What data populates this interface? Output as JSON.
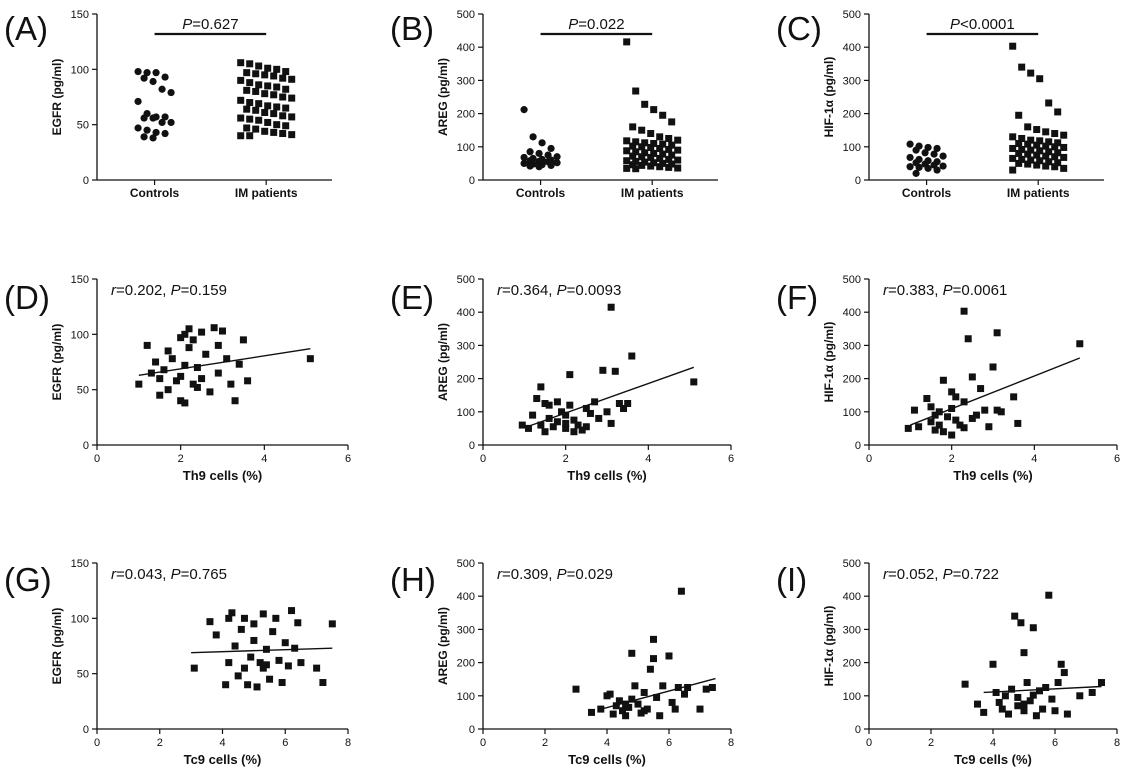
{
  "chart_data": [
    {
      "panel": "(A)",
      "type": "scatter",
      "ylabel": "EGFR (pg/ml)",
      "ylim": [
        0,
        150
      ],
      "yticks": [
        0,
        50,
        100,
        150
      ],
      "categories": [
        "Controls",
        "IM patients"
      ],
      "series": [
        {
          "marker": "circle",
          "values": [
            98,
            97,
            97,
            93,
            92,
            89,
            82,
            79,
            71,
            60,
            57,
            57,
            56,
            56,
            52,
            52,
            47,
            45,
            43,
            42,
            39,
            38
          ]
        },
        {
          "marker": "square",
          "values": [
            106,
            105,
            103,
            101,
            100,
            98,
            97,
            96,
            95,
            94,
            92,
            91,
            90,
            88,
            86,
            85,
            84,
            82,
            81,
            80,
            78,
            77,
            75,
            74,
            72,
            70,
            69,
            67,
            66,
            65,
            64,
            63,
            61,
            60,
            58,
            57,
            56,
            55,
            54,
            52,
            50,
            49,
            47,
            46,
            44,
            43,
            42,
            41,
            40,
            40
          ]
        }
      ],
      "bracket": {
        "prefix": "P",
        "text": "=0.627"
      }
    },
    {
      "panel": "(B)",
      "type": "scatter",
      "ylabel": "AREG (pg/ml)",
      "ylim": [
        0,
        500
      ],
      "yticks": [
        0,
        100,
        200,
        300,
        400,
        500
      ],
      "categories": [
        "Controls",
        "IM patients"
      ],
      "series": [
        {
          "marker": "circle",
          "values": [
            212,
            130,
            112,
            95,
            85,
            80,
            75,
            70,
            68,
            65,
            62,
            60,
            58,
            56,
            55,
            52,
            50,
            48,
            46,
            44,
            42,
            40
          ]
        },
        {
          "marker": "square",
          "values": [
            416,
            268,
            228,
            212,
            195,
            175,
            160,
            150,
            140,
            130,
            125,
            120,
            118,
            115,
            112,
            110,
            108,
            105,
            102,
            100,
            98,
            95,
            92,
            90,
            88,
            85,
            82,
            80,
            78,
            75,
            72,
            70,
            68,
            65,
            62,
            60,
            58,
            56,
            54,
            52,
            50,
            48,
            46,
            44,
            42,
            40,
            38,
            36,
            35,
            34
          ]
        }
      ],
      "bracket": {
        "prefix": "P",
        "text": "=0.022"
      }
    },
    {
      "panel": "(C)",
      "type": "scatter",
      "ylabel": "HIF-1α (pg/ml)",
      "ylim": [
        0,
        500
      ],
      "yticks": [
        0,
        100,
        200,
        300,
        400,
        500
      ],
      "categories": [
        "Controls",
        "IM patients"
      ],
      "series": [
        {
          "marker": "circle",
          "values": [
            108,
            102,
            98,
            95,
            90,
            82,
            78,
            72,
            68,
            62,
            58,
            55,
            52,
            48,
            45,
            42,
            40,
            38,
            35,
            30,
            20
          ]
        },
        {
          "marker": "square",
          "values": [
            403,
            340,
            322,
            305,
            232,
            205,
            195,
            160,
            152,
            145,
            140,
            135,
            130,
            125,
            120,
            118,
            115,
            112,
            110,
            108,
            105,
            102,
            100,
            98,
            95,
            92,
            90,
            88,
            85,
            82,
            80,
            78,
            75,
            72,
            70,
            68,
            65,
            62,
            60,
            58,
            55,
            52,
            50,
            48,
            45,
            42,
            40,
            35,
            30
          ]
        }
      ],
      "bracket": {
        "prefix": "P",
        "text": "<0.0001"
      }
    },
    {
      "panel": "(D)",
      "type": "scatter",
      "xlabel": "Th9 cells (%)",
      "ylabel": "EGFR (pg/ml)",
      "xlim": [
        0,
        6
      ],
      "xticks": [
        0,
        2,
        4,
        6
      ],
      "ylim": [
        0,
        150
      ],
      "yticks": [
        0,
        50,
        100,
        150
      ],
      "points": [
        [
          1.0,
          55
        ],
        [
          1.2,
          90
        ],
        [
          1.3,
          65
        ],
        [
          1.4,
          75
        ],
        [
          1.5,
          60
        ],
        [
          1.5,
          45
        ],
        [
          1.6,
          68
        ],
        [
          1.7,
          50
        ],
        [
          1.8,
          78
        ],
        [
          1.9,
          58
        ],
        [
          2.0,
          97
        ],
        [
          2.0,
          62
        ],
        [
          2.0,
          40
        ],
        [
          2.1,
          100
        ],
        [
          2.1,
          72
        ],
        [
          2.1,
          38
        ],
        [
          2.2,
          105
        ],
        [
          2.2,
          88
        ],
        [
          2.3,
          55
        ],
        [
          2.3,
          95
        ],
        [
          2.4,
          70
        ],
        [
          2.5,
          102
        ],
        [
          2.5,
          60
        ],
        [
          2.6,
          82
        ],
        [
          2.7,
          48
        ],
        [
          2.8,
          106
        ],
        [
          2.9,
          65
        ],
        [
          2.9,
          90
        ],
        [
          3.0,
          103
        ],
        [
          3.1,
          78
        ],
        [
          3.2,
          55
        ],
        [
          3.3,
          40
        ],
        [
          3.4,
          73
        ],
        [
          3.5,
          95
        ],
        [
          3.6,
          58
        ],
        [
          5.1,
          78
        ],
        [
          1.7,
          85
        ],
        [
          2.4,
          52
        ]
      ],
      "fit": [
        [
          1.0,
          63
        ],
        [
          5.1,
          87
        ]
      ],
      "annotation": {
        "r_text": "=0.202, ",
        "p_text": "=0.159"
      }
    },
    {
      "panel": "(E)",
      "type": "scatter",
      "xlabel": "Th9 cells (%)",
      "ylabel": "AREG (pg/ml)",
      "xlim": [
        0,
        6
      ],
      "xticks": [
        0,
        2,
        4,
        6
      ],
      "ylim": [
        0,
        500
      ],
      "yticks": [
        0,
        100,
        200,
        300,
        400,
        500
      ],
      "points": [
        [
          0.95,
          60
        ],
        [
          1.1,
          50
        ],
        [
          1.2,
          90
        ],
        [
          1.3,
          140
        ],
        [
          1.4,
          175
        ],
        [
          1.4,
          60
        ],
        [
          1.5,
          40
        ],
        [
          1.6,
          120
        ],
        [
          1.6,
          80
        ],
        [
          1.7,
          55
        ],
        [
          1.8,
          130
        ],
        [
          1.8,
          70
        ],
        [
          1.9,
          100
        ],
        [
          2.0,
          50
        ],
        [
          2.0,
          90
        ],
        [
          2.1,
          212
        ],
        [
          2.1,
          120
        ],
        [
          2.2,
          40
        ],
        [
          2.2,
          75
        ],
        [
          2.3,
          60
        ],
        [
          2.4,
          45
        ],
        [
          2.5,
          110
        ],
        [
          2.6,
          95
        ],
        [
          2.7,
          130
        ],
        [
          2.8,
          80
        ],
        [
          2.9,
          225
        ],
        [
          3.0,
          100
        ],
        [
          3.1,
          415
        ],
        [
          3.1,
          65
        ],
        [
          3.2,
          222
        ],
        [
          3.3,
          125
        ],
        [
          3.4,
          110
        ],
        [
          3.5,
          125
        ],
        [
          3.6,
          268
        ],
        [
          5.1,
          190
        ],
        [
          1.5,
          125
        ],
        [
          2.0,
          65
        ],
        [
          2.5,
          55
        ]
      ],
      "fit": [
        [
          1.0,
          52
        ],
        [
          5.1,
          234
        ]
      ],
      "annotation": {
        "r_text": "=0.364, ",
        "p_text": "=0.0093"
      }
    },
    {
      "panel": "(F)",
      "type": "scatter",
      "xlabel": "Th9 cells (%)",
      "ylabel": "HIF-1α (pg/ml)",
      "xlim": [
        0,
        6
      ],
      "xticks": [
        0,
        2,
        4,
        6
      ],
      "ylim": [
        0,
        500
      ],
      "yticks": [
        0,
        100,
        200,
        300,
        400,
        500
      ],
      "points": [
        [
          0.95,
          50
        ],
        [
          1.1,
          105
        ],
        [
          1.2,
          55
        ],
        [
          1.4,
          140
        ],
        [
          1.5,
          115
        ],
        [
          1.5,
          70
        ],
        [
          1.6,
          90
        ],
        [
          1.7,
          60
        ],
        [
          1.7,
          100
        ],
        [
          1.8,
          40
        ],
        [
          1.8,
          195
        ],
        [
          1.9,
          85
        ],
        [
          2.0,
          110
        ],
        [
          2.0,
          30
        ],
        [
          2.1,
          145
        ],
        [
          2.1,
          75
        ],
        [
          2.2,
          60
        ],
        [
          2.3,
          403
        ],
        [
          2.3,
          130
        ],
        [
          2.3,
          52
        ],
        [
          2.4,
          320
        ],
        [
          2.5,
          205
        ],
        [
          2.6,
          90
        ],
        [
          2.7,
          170
        ],
        [
          2.8,
          105
        ],
        [
          2.9,
          55
        ],
        [
          3.0,
          235
        ],
        [
          3.1,
          338
        ],
        [
          3.1,
          105
        ],
        [
          3.2,
          100
        ],
        [
          3.5,
          145
        ],
        [
          3.6,
          65
        ],
        [
          5.1,
          305
        ],
        [
          1.6,
          45
        ],
        [
          2.0,
          160
        ],
        [
          2.5,
          80
        ]
      ],
      "fit": [
        [
          1.0,
          60
        ],
        [
          5.1,
          262
        ]
      ],
      "annotation": {
        "r_text": "=0.383, ",
        "p_text": "=0.0061"
      }
    },
    {
      "panel": "(G)",
      "type": "scatter",
      "xlabel": "Tc9 cells (%)",
      "ylabel": "EGFR (pg/ml)",
      "xlim": [
        0,
        8
      ],
      "xticks": [
        0,
        2,
        4,
        6,
        8
      ],
      "ylim": [
        0,
        150
      ],
      "yticks": [
        0,
        50,
        100,
        150
      ],
      "points": [
        [
          3.1,
          55
        ],
        [
          3.6,
          97
        ],
        [
          3.8,
          85
        ],
        [
          4.1,
          40
        ],
        [
          4.2,
          60
        ],
        [
          4.3,
          105
        ],
        [
          4.4,
          75
        ],
        [
          4.5,
          48
        ],
        [
          4.6,
          90
        ],
        [
          4.7,
          55
        ],
        [
          4.7,
          100
        ],
        [
          4.8,
          40
        ],
        [
          4.9,
          65
        ],
        [
          5.0,
          80
        ],
        [
          5.0,
          95
        ],
        [
          5.1,
          38
        ],
        [
          5.2,
          60
        ],
        [
          5.3,
          104
        ],
        [
          5.3,
          55
        ],
        [
          5.4,
          72
        ],
        [
          5.5,
          45
        ],
        [
          5.6,
          88
        ],
        [
          5.7,
          100
        ],
        [
          5.8,
          62
        ],
        [
          5.9,
          42
        ],
        [
          6.0,
          78
        ],
        [
          6.1,
          57
        ],
        [
          6.2,
          107
        ],
        [
          6.3,
          73
        ],
        [
          6.4,
          96
        ],
        [
          6.5,
          60
        ],
        [
          7.0,
          55
        ],
        [
          7.2,
          42
        ],
        [
          7.5,
          95
        ],
        [
          4.2,
          100
        ],
        [
          5.4,
          58
        ]
      ],
      "fit": [
        [
          3.0,
          69
        ],
        [
          7.5,
          73
        ]
      ],
      "annotation": {
        "r_text": "=0.043, ",
        "p_text": "=0.765"
      }
    },
    {
      "panel": "(H)",
      "type": "scatter",
      "xlabel": "Tc9 cells (%)",
      "ylabel": "AREG (pg/ml)",
      "xlim": [
        0,
        8
      ],
      "xticks": [
        0,
        2,
        4,
        6,
        8
      ],
      "ylim": [
        0,
        500
      ],
      "yticks": [
        0,
        100,
        200,
        300,
        400,
        500
      ],
      "points": [
        [
          3.0,
          120
        ],
        [
          3.5,
          50
        ],
        [
          3.8,
          60
        ],
        [
          4.0,
          100
        ],
        [
          4.1,
          105
        ],
        [
          4.2,
          45
        ],
        [
          4.3,
          70
        ],
        [
          4.4,
          85
        ],
        [
          4.5,
          55
        ],
        [
          4.6,
          40
        ],
        [
          4.7,
          65
        ],
        [
          4.8,
          228
        ],
        [
          4.8,
          90
        ],
        [
          4.9,
          130
        ],
        [
          5.0,
          75
        ],
        [
          5.1,
          48
        ],
        [
          5.2,
          110
        ],
        [
          5.3,
          60
        ],
        [
          5.4,
          180
        ],
        [
          5.5,
          212
        ],
        [
          5.5,
          270
        ],
        [
          5.6,
          95
        ],
        [
          5.7,
          40
        ],
        [
          5.8,
          130
        ],
        [
          6.0,
          220
        ],
        [
          6.1,
          80
        ],
        [
          6.2,
          60
        ],
        [
          6.3,
          125
        ],
        [
          6.4,
          415
        ],
        [
          6.5,
          105
        ],
        [
          6.6,
          125
        ],
        [
          7.0,
          60
        ],
        [
          7.2,
          120
        ],
        [
          7.4,
          125
        ],
        [
          4.6,
          75
        ],
        [
          5.2,
          55
        ]
      ],
      "fit": [
        [
          3.7,
          57
        ],
        [
          7.5,
          152
        ]
      ],
      "annotation": {
        "r_text": "=0.309, ",
        "p_text": "=0.029"
      }
    },
    {
      "panel": "(I)",
      "type": "scatter",
      "xlabel": "Tc9 cells (%)",
      "ylabel": "HIF-1α (pg/ml)",
      "xlim": [
        0,
        8
      ],
      "xticks": [
        0,
        2,
        4,
        6,
        8
      ],
      "ylim": [
        0,
        500
      ],
      "yticks": [
        0,
        100,
        200,
        300,
        400,
        500
      ],
      "points": [
        [
          3.1,
          135
        ],
        [
          3.5,
          75
        ],
        [
          3.7,
          50
        ],
        [
          4.0,
          195
        ],
        [
          4.1,
          110
        ],
        [
          4.2,
          80
        ],
        [
          4.3,
          60
        ],
        [
          4.4,
          100
        ],
        [
          4.5,
          45
        ],
        [
          4.6,
          120
        ],
        [
          4.7,
          340
        ],
        [
          4.8,
          95
        ],
        [
          4.8,
          70
        ],
        [
          4.9,
          320
        ],
        [
          5.0,
          230
        ],
        [
          5.0,
          55
        ],
        [
          5.1,
          140
        ],
        [
          5.2,
          85
        ],
        [
          5.3,
          305
        ],
        [
          5.4,
          40
        ],
        [
          5.5,
          115
        ],
        [
          5.6,
          60
        ],
        [
          5.7,
          125
        ],
        [
          5.8,
          403
        ],
        [
          5.9,
          90
        ],
        [
          6.0,
          55
        ],
        [
          6.1,
          140
        ],
        [
          6.2,
          195
        ],
        [
          6.3,
          170
        ],
        [
          6.4,
          45
        ],
        [
          6.8,
          100
        ],
        [
          7.2,
          110
        ],
        [
          7.5,
          140
        ],
        [
          5.0,
          75
        ],
        [
          5.3,
          102
        ]
      ],
      "fit": [
        [
          3.7,
          110
        ],
        [
          7.5,
          128
        ]
      ],
      "annotation": {
        "r_text": "=0.052, ",
        "p_text": "=0.722"
      }
    }
  ]
}
